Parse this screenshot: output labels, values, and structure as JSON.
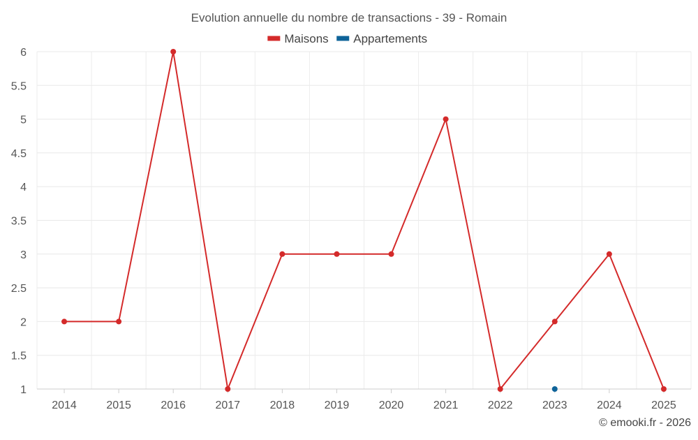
{
  "chart_data": {
    "type": "line",
    "title": "Evolution annuelle du nombre de transactions - 39 - Romain",
    "categories": [
      "2014",
      "2015",
      "2016",
      "2017",
      "2018",
      "2019",
      "2020",
      "2021",
      "2022",
      "2023",
      "2024",
      "2025"
    ],
    "series": [
      {
        "name": "Maisons",
        "color": "#d42a2a",
        "values": [
          2,
          2,
          6,
          1,
          3,
          3,
          3,
          5,
          1,
          2,
          3,
          1
        ]
      },
      {
        "name": "Appartements",
        "color": "#0e6399",
        "values": [
          null,
          null,
          null,
          null,
          null,
          null,
          null,
          null,
          null,
          1,
          null,
          null
        ]
      }
    ],
    "ylim": [
      1,
      6
    ],
    "yticks": [
      1,
      1.5,
      2,
      2.5,
      3,
      3.5,
      4,
      4.5,
      5,
      5.5,
      6
    ],
    "xlabel": "",
    "ylabel": "",
    "grid": true,
    "legend_position": "top-center"
  },
  "footer": {
    "credit": "© emooki.fr - 2026"
  }
}
